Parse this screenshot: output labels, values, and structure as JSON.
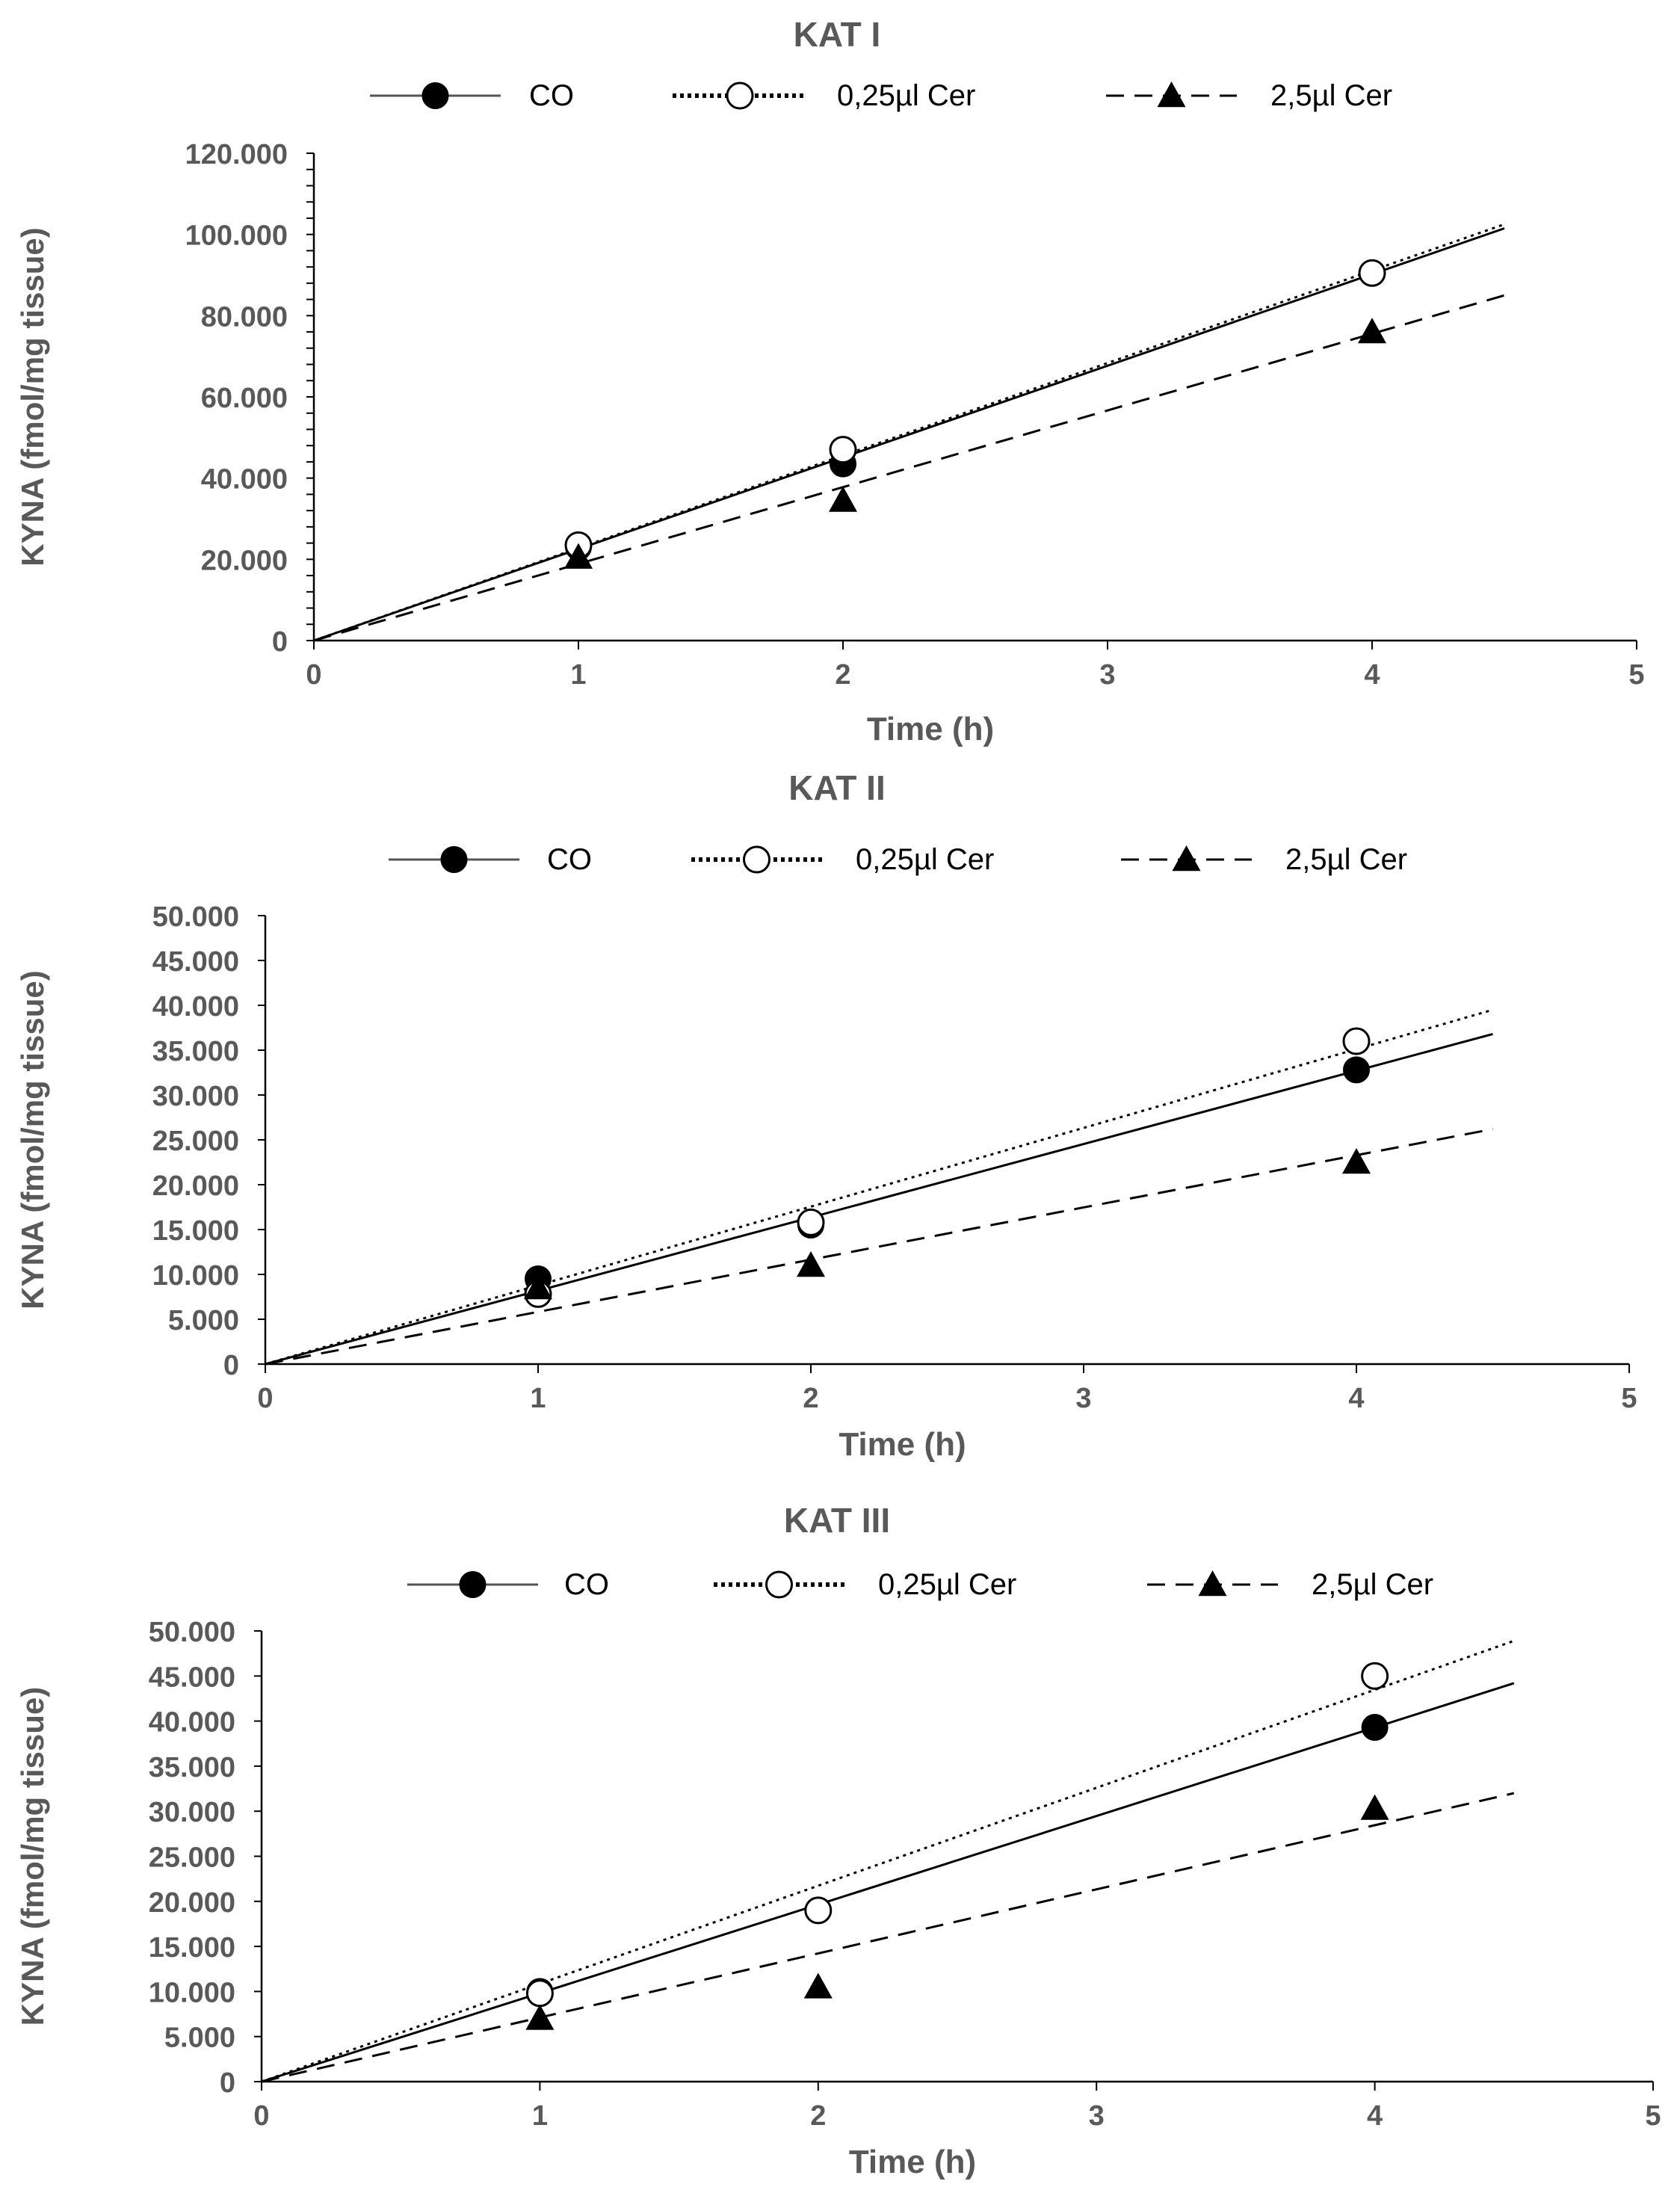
{
  "chart_data": [
    {
      "type": "scatter",
      "title": "KAT I",
      "xlabel": "Time (h)",
      "ylabel": "KYNA (fmol/mg tissue)",
      "xlim": [
        0,
        5
      ],
      "ylim": [
        0,
        120000
      ],
      "x_ticks": [
        "0",
        "1",
        "2",
        "3",
        "4",
        "5"
      ],
      "y_ticks": [
        "0",
        "20.000",
        "40.000",
        "60.000",
        "80.000",
        "100.000",
        "120.000"
      ],
      "legend_position": "top",
      "grid": false,
      "series": [
        {
          "name": "CO",
          "marker": "filled-circle",
          "line": "solid",
          "x": [
            1,
            2,
            4
          ],
          "y": [
            23000,
            43500,
            90500
          ],
          "trend_end": [
            4.5,
            101500
          ]
        },
        {
          "name": "0,25µl Cer",
          "marker": "open-circle",
          "line": "dotted",
          "x": [
            1,
            2,
            4
          ],
          "y": [
            23500,
            47000,
            90500
          ],
          "trend_end": [
            4.5,
            102500
          ]
        },
        {
          "name": "2,5µl Cer",
          "marker": "filled-triangle",
          "line": "dashed",
          "x": [
            1,
            2,
            4
          ],
          "y": [
            20500,
            34500,
            76000
          ],
          "trend_end": [
            4.5,
            85000
          ]
        }
      ]
    },
    {
      "type": "scatter",
      "title": "KAT II",
      "xlabel": "Time (h)",
      "ylabel": "KYNA (fmol/mg tissue)",
      "xlim": [
        0,
        5
      ],
      "ylim": [
        0,
        50000
      ],
      "x_ticks": [
        "0",
        "1",
        "2",
        "3",
        "4",
        "5"
      ],
      "y_ticks": [
        "0",
        "5.000",
        "10.000",
        "15.000",
        "20.000",
        "25.000",
        "30.000",
        "35.000",
        "40.000",
        "45.000",
        "50.000"
      ],
      "legend_position": "top",
      "grid": false,
      "series": [
        {
          "name": "CO",
          "marker": "filled-circle",
          "line": "solid",
          "x": [
            1,
            2,
            4
          ],
          "y": [
            9500,
            15500,
            32800
          ],
          "trend_end": [
            4.5,
            36800
          ]
        },
        {
          "name": "0,25µl Cer",
          "marker": "open-circle",
          "line": "dotted",
          "x": [
            1,
            2,
            4
          ],
          "y": [
            7800,
            15800,
            36000
          ],
          "trend_end": [
            4.5,
            39500
          ]
        },
        {
          "name": "2,5µl Cer",
          "marker": "filled-triangle",
          "line": "dashed",
          "x": [
            1,
            2,
            4
          ],
          "y": [
            8500,
            11000,
            22500
          ],
          "trend_end": [
            4.5,
            26200
          ]
        }
      ]
    },
    {
      "type": "scatter",
      "title": "KAT III",
      "xlabel": "Time (h)",
      "ylabel": "KYNA (fmol/mg tissue)",
      "xlim": [
        0,
        5
      ],
      "ylim": [
        0,
        50000
      ],
      "x_ticks": [
        "0",
        "1",
        "2",
        "3",
        "4",
        "5"
      ],
      "y_ticks": [
        "0",
        "5.000",
        "10.000",
        "15.000",
        "20.000",
        "25.000",
        "30.000",
        "35.000",
        "40.000",
        "45.000",
        "50.000"
      ],
      "legend_position": "top",
      "grid": false,
      "series": [
        {
          "name": "CO",
          "marker": "filled-circle",
          "line": "solid",
          "x": [
            1,
            2,
            4
          ],
          "y": [
            10000,
            19000,
            39300
          ],
          "trend_end": [
            4.5,
            44200
          ]
        },
        {
          "name": "0,25µl Cer",
          "marker": "open-circle",
          "line": "dotted",
          "x": [
            1,
            2,
            4
          ],
          "y": [
            9800,
            19000,
            45000
          ],
          "trend_end": [
            4.5,
            48900
          ]
        },
        {
          "name": "2,5µl Cer",
          "marker": "filled-triangle",
          "line": "dashed",
          "x": [
            1,
            2,
            4
          ],
          "y": [
            7000,
            10500,
            30300
          ],
          "trend_end": [
            4.5,
            32000
          ]
        }
      ]
    }
  ]
}
